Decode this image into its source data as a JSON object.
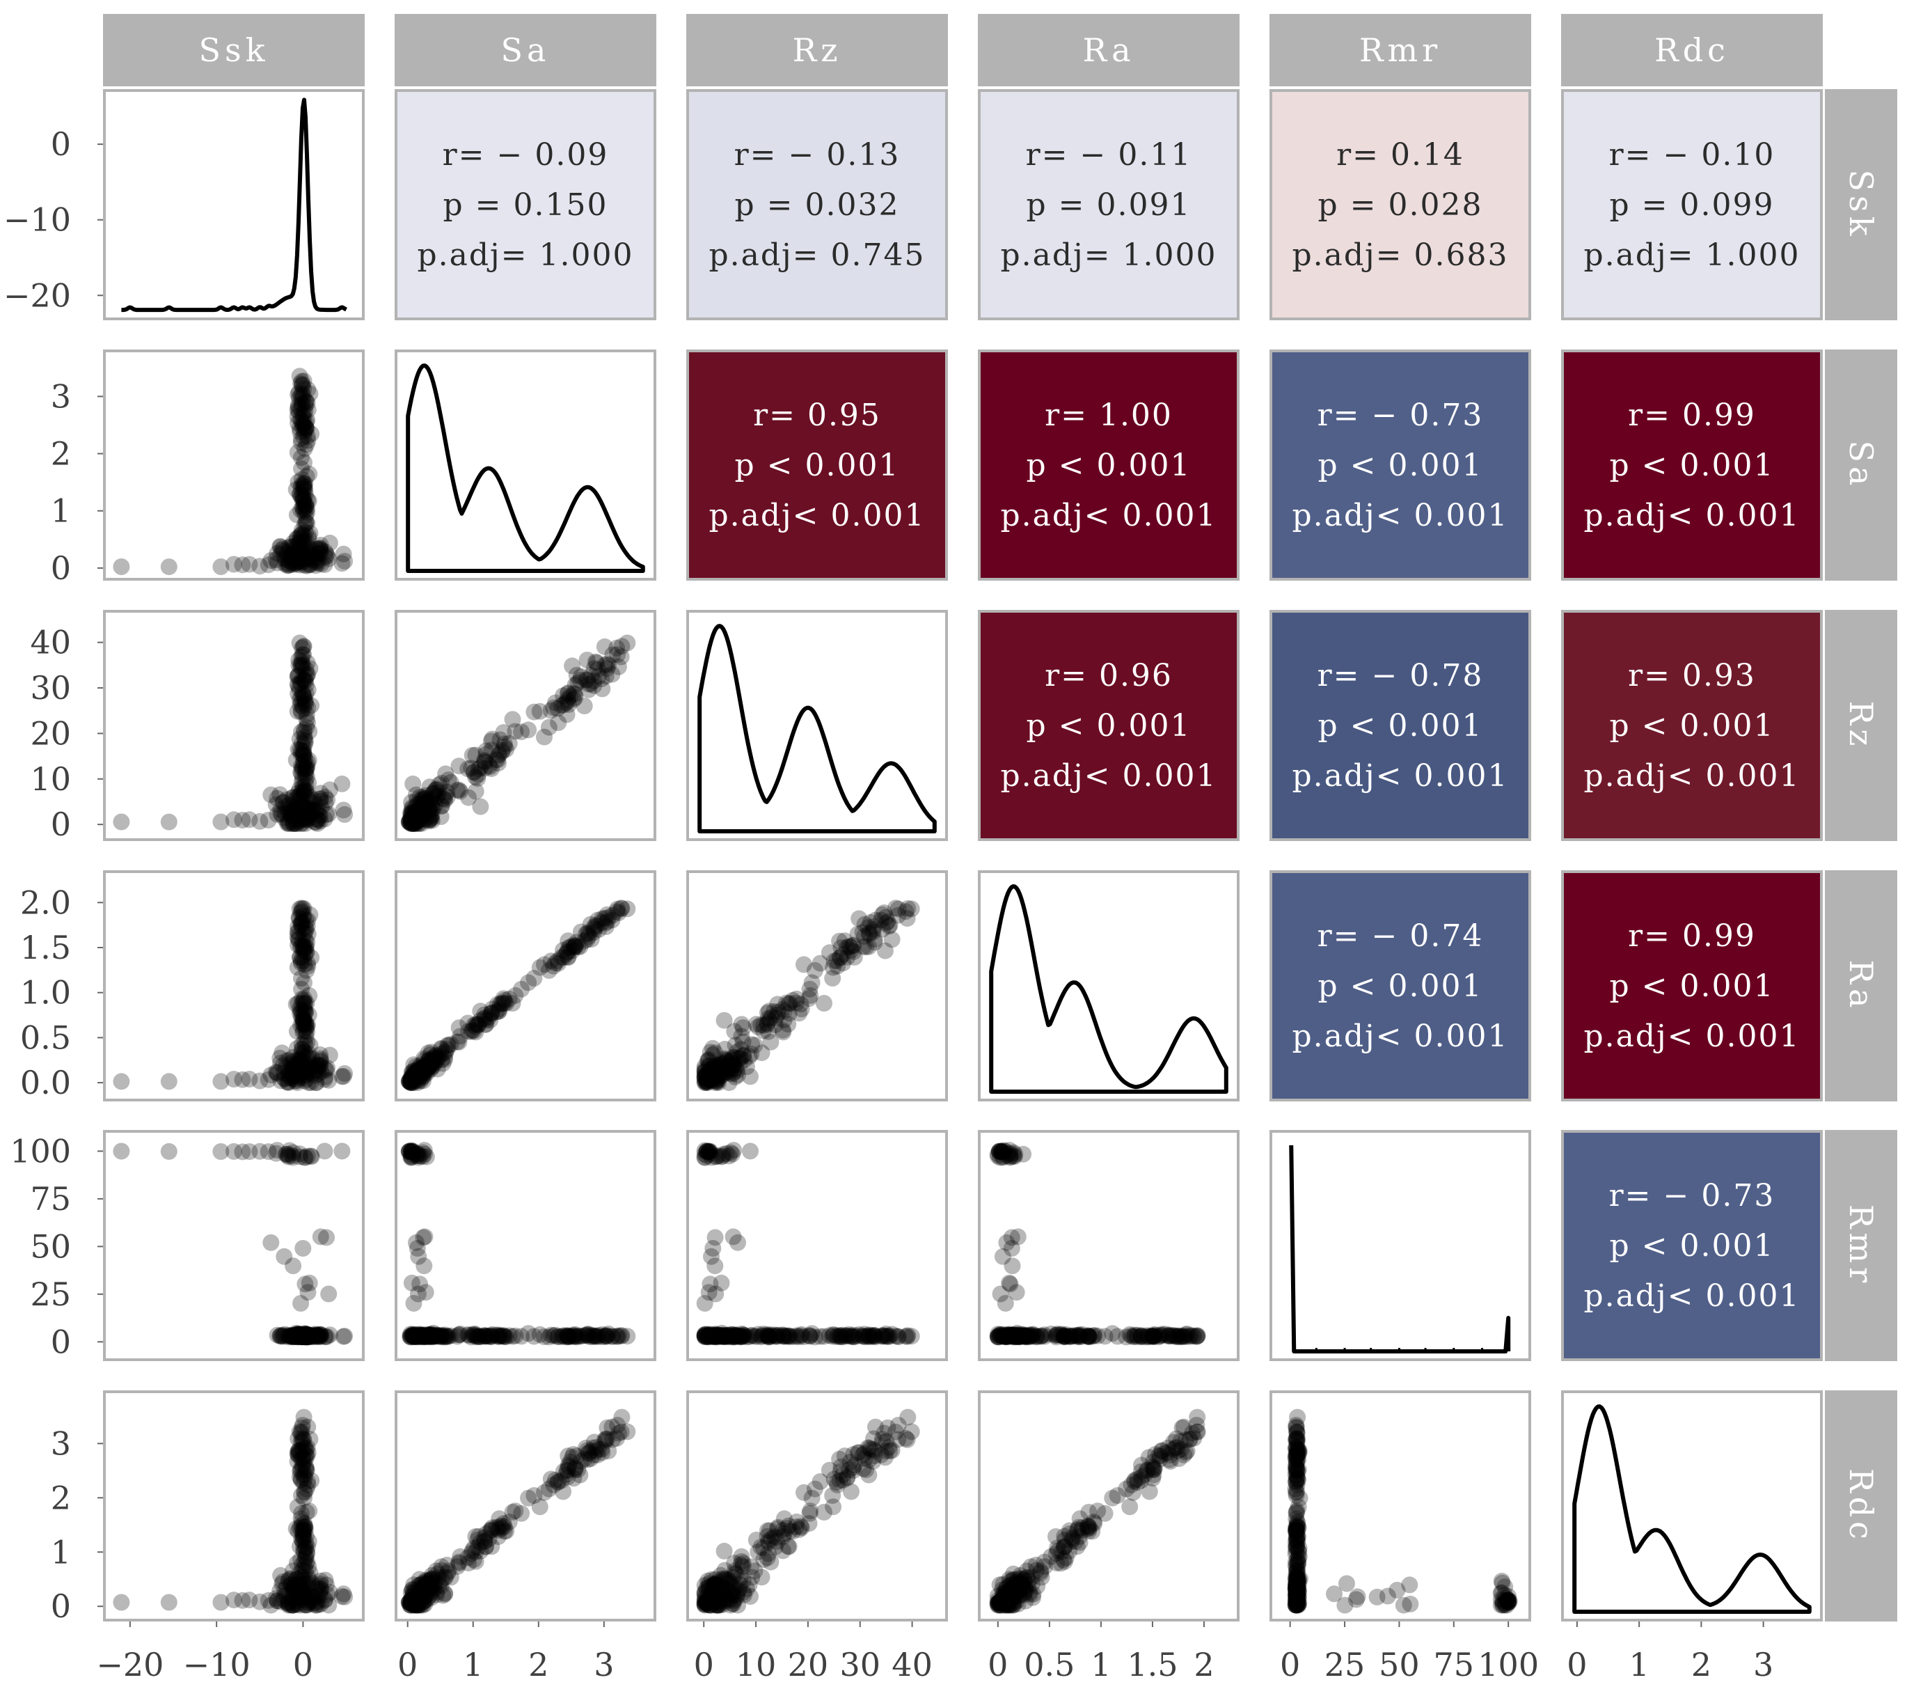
{
  "chart_data": {
    "type": "scatter-matrix",
    "variables": [
      "Ssk",
      "Sa",
      "Rz",
      "Ra",
      "Rmr",
      "Rdc"
    ],
    "ranges": {
      "Ssk": [
        -22,
        6
      ],
      "Sa": [
        -0.05,
        3.65
      ],
      "Rz": [
        -1.5,
        45
      ],
      "Ra": [
        -0.1,
        2.25
      ],
      "Rmr": [
        -5,
        106
      ],
      "Rdc": [
        -0.1,
        3.8
      ]
    },
    "ticks": {
      "Ssk": [
        {
          "v": -20,
          "t": "−20"
        },
        {
          "v": -10,
          "t": "−10"
        },
        {
          "v": 0,
          "t": "0"
        }
      ],
      "Sa": [
        {
          "v": 0,
          "t": "0"
        },
        {
          "v": 1,
          "t": "1"
        },
        {
          "v": 2,
          "t": "2"
        },
        {
          "v": 3,
          "t": "3"
        }
      ],
      "Rz": [
        {
          "v": 0,
          "t": "0"
        },
        {
          "v": 10,
          "t": "10"
        },
        {
          "v": 20,
          "t": "20"
        },
        {
          "v": 30,
          "t": "30"
        },
        {
          "v": 40,
          "t": "40"
        }
      ],
      "Ra": [
        {
          "v": 0,
          "t": "0"
        },
        {
          "v": 0.5,
          "t": "0.5"
        },
        {
          "v": 1,
          "t": "1"
        },
        {
          "v": 1.5,
          "t": "1.5"
        },
        {
          "v": 2,
          "t": "2"
        }
      ],
      "Rmr": [
        {
          "v": 0,
          "t": "0"
        },
        {
          "v": 25,
          "t": "25"
        },
        {
          "v": 50,
          "t": "50"
        },
        {
          "v": 75,
          "t": "75"
        },
        {
          "v": 100,
          "t": "100"
        }
      ],
      "Rdc": [
        {
          "v": 0,
          "t": "0"
        },
        {
          "v": 1,
          "t": "1"
        },
        {
          "v": 2,
          "t": "2"
        },
        {
          "v": 3,
          "t": "3"
        }
      ]
    },
    "yticks": {
      "Ssk": [
        {
          "v": 0,
          "t": "0"
        },
        {
          "v": -10,
          "t": "−10"
        },
        {
          "v": -20,
          "t": "−20"
        }
      ],
      "Sa": [
        {
          "v": 0,
          "t": "0"
        },
        {
          "v": 1,
          "t": "1"
        },
        {
          "v": 2,
          "t": "2"
        },
        {
          "v": 3,
          "t": "3"
        }
      ],
      "Rz": [
        {
          "v": 0,
          "t": "0"
        },
        {
          "v": 10,
          "t": "10"
        },
        {
          "v": 20,
          "t": "20"
        },
        {
          "v": 30,
          "t": "30"
        },
        {
          "v": 40,
          "t": "40"
        }
      ],
      "Ra": [
        {
          "v": 0,
          "t": "0.0"
        },
        {
          "v": 0.5,
          "t": "0.5"
        },
        {
          "v": 1,
          "t": "1.0"
        },
        {
          "v": 1.5,
          "t": "1.5"
        },
        {
          "v": 2,
          "t": "2.0"
        }
      ],
      "Rmr": [
        {
          "v": 0,
          "t": "0"
        },
        {
          "v": 25,
          "t": "25"
        },
        {
          "v": 50,
          "t": "50"
        },
        {
          "v": 75,
          "t": "75"
        },
        {
          "v": 100,
          "t": "100"
        }
      ],
      "Rdc": [
        {
          "v": 0,
          "t": "0"
        },
        {
          "v": 1,
          "t": "1"
        },
        {
          "v": 2,
          "t": "2"
        },
        {
          "v": 3,
          "t": "3"
        }
      ]
    },
    "correlations": [
      {
        "row": "Ssk",
        "col": "Sa",
        "r": "r= − 0.09",
        "p": "p = 0.150",
        "padj": "p.adj= 1.000",
        "fill": "#e4e5ee",
        "text": "#2b2b2b"
      },
      {
        "row": "Ssk",
        "col": "Rz",
        "r": "r= − 0.13",
        "p": "p = 0.032",
        "padj": "p.adj= 0.745",
        "fill": "#dde0ea",
        "text": "#2b2b2b"
      },
      {
        "row": "Ssk",
        "col": "Ra",
        "r": "r= − 0.11",
        "p": "p = 0.091",
        "padj": "p.adj= 1.000",
        "fill": "#e2e3ed",
        "text": "#2b2b2b"
      },
      {
        "row": "Ssk",
        "col": "Rmr",
        "r": "r= 0.14",
        "p": "p = 0.028",
        "padj": "p.adj= 0.683",
        "fill": "#ecdcdc",
        "text": "#2b2b2b"
      },
      {
        "row": "Ssk",
        "col": "Rdc",
        "r": "r= − 0.10",
        "p": "p = 0.099",
        "padj": "p.adj= 1.000",
        "fill": "#e3e4ed",
        "text": "#2b2b2b"
      },
      {
        "row": "Sa",
        "col": "Rz",
        "r": "r= 0.95",
        "p": "p < 0.001",
        "padj": "p.adj< 0.001",
        "fill": "#6b0f24",
        "text": "#ffffff"
      },
      {
        "row": "Sa",
        "col": "Ra",
        "r": "r= 1.00",
        "p": "p < 0.001",
        "padj": "p.adj< 0.001",
        "fill": "#680020",
        "text": "#ffffff"
      },
      {
        "row": "Sa",
        "col": "Rmr",
        "r": "r= − 0.73",
        "p": "p < 0.001",
        "padj": "p.adj< 0.001",
        "fill": "#516089",
        "text": "#ffffff"
      },
      {
        "row": "Sa",
        "col": "Rdc",
        "r": "r= 0.99",
        "p": "p < 0.001",
        "padj": "p.adj< 0.001",
        "fill": "#690020",
        "text": "#ffffff"
      },
      {
        "row": "Rz",
        "col": "Ra",
        "r": "r= 0.96",
        "p": "p < 0.001",
        "padj": "p.adj< 0.001",
        "fill": "#6a0c23",
        "text": "#ffffff"
      },
      {
        "row": "Rz",
        "col": "Rmr",
        "r": "r= − 0.78",
        "p": "p < 0.001",
        "padj": "p.adj< 0.001",
        "fill": "#485881",
        "text": "#ffffff"
      },
      {
        "row": "Rz",
        "col": "Rdc",
        "r": "r= 0.93",
        "p": "p < 0.001",
        "padj": "p.adj< 0.001",
        "fill": "#6f1a2b",
        "text": "#ffffff"
      },
      {
        "row": "Ra",
        "col": "Rmr",
        "r": "r= − 0.74",
        "p": "p < 0.001",
        "padj": "p.adj< 0.001",
        "fill": "#4f5e87",
        "text": "#ffffff"
      },
      {
        "row": "Ra",
        "col": "Rdc",
        "r": "r= 0.99",
        "p": "p < 0.001",
        "padj": "p.adj< 0.001",
        "fill": "#690020",
        "text": "#ffffff"
      },
      {
        "row": "Rmr",
        "col": "Rdc",
        "r": "r= − 0.73",
        "p": "p < 0.001",
        "padj": "p.adj< 0.001",
        "fill": "#516089",
        "text": "#ffffff"
      }
    ],
    "density_modes": {
      "Sa": [
        [
          0.25,
          1.0
        ],
        [
          1.25,
          0.49
        ],
        [
          2.75,
          0.41
        ]
      ],
      "Rz": [
        [
          3,
          1.0
        ],
        [
          20,
          0.6
        ],
        [
          36,
          0.33
        ]
      ],
      "Ra": [
        [
          0.15,
          1.0
        ],
        [
          0.75,
          0.52
        ],
        [
          1.9,
          0.36
        ]
      ],
      "Rdc": [
        [
          0.35,
          1.0
        ],
        [
          1.3,
          0.38
        ],
        [
          2.95,
          0.28
        ]
      ]
    },
    "colors": {
      "strip": "#b3b3b3",
      "panel_border": "#b3b3b3",
      "point": "#000000",
      "line": "#000000"
    }
  }
}
